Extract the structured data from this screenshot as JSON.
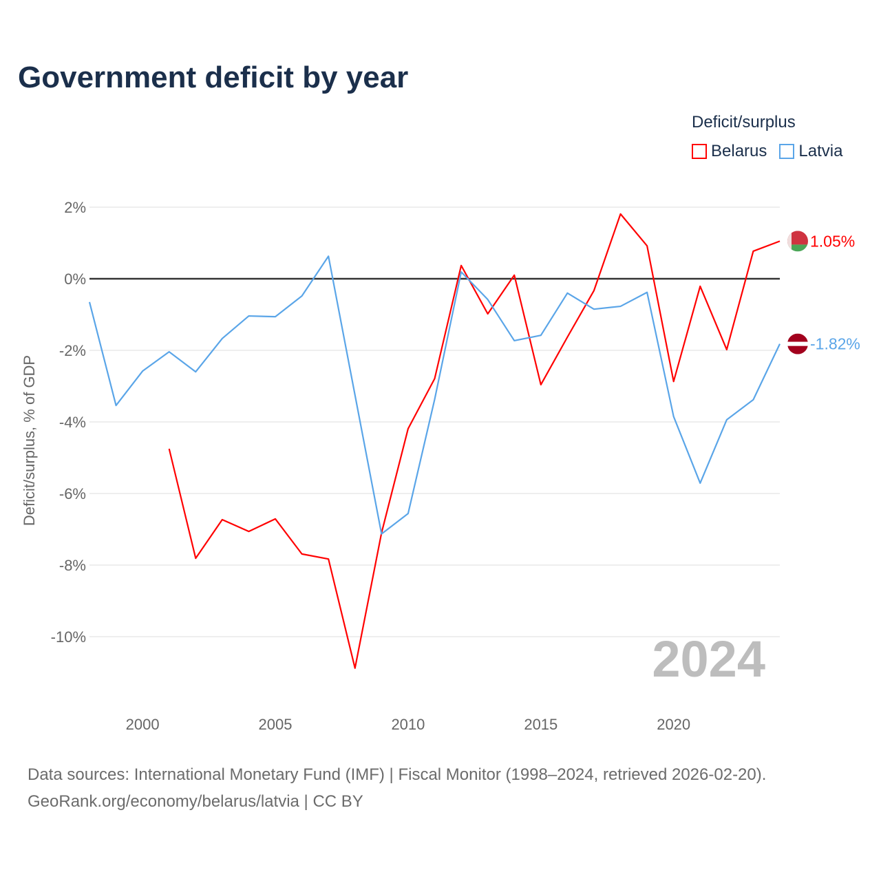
{
  "title": "Government deficit by year",
  "legend": {
    "title": "Deficit/surplus",
    "items": [
      {
        "name": "Belarus",
        "color": "#ff0000"
      },
      {
        "name": "Latvia",
        "color": "#5aa5e8"
      }
    ]
  },
  "footer": {
    "line1": "Data sources: International Monetary Fund (IMF) | Fiscal Monitor (1998–2024, retrieved 2026-02-20).",
    "line2": "GeoRank.org/economy/belarus/latvia | CC BY"
  },
  "chart_data": {
    "type": "line",
    "title": "Government deficit by year",
    "xlabel": "",
    "ylabel": "Deficit/surplus, % of GDP",
    "xlim": [
      1998,
      2024
    ],
    "ylim": [
      -11.5,
      2.2
    ],
    "yticks": [
      2,
      0,
      -2,
      -4,
      -6,
      -8,
      -10
    ],
    "ytick_labels": [
      "2%",
      "0%",
      "-2%",
      "-4%",
      "-6%",
      "-8%",
      "-10%"
    ],
    "xticks": [
      2000,
      2005,
      2010,
      2015,
      2020
    ],
    "xtick_labels": [
      "2000",
      "2005",
      "2010",
      "2015",
      "2020"
    ],
    "year_watermark": "2024",
    "series": [
      {
        "name": "Belarus",
        "color": "#ff0000",
        "end_label": "1.05%",
        "x": [
          2001,
          2002,
          2003,
          2004,
          2005,
          2006,
          2007,
          2008,
          2009,
          2010,
          2011,
          2012,
          2013,
          2014,
          2015,
          2016,
          2017,
          2018,
          2019,
          2020,
          2021,
          2022,
          2023,
          2024
        ],
        "values": [
          -4.75,
          -7.81,
          -6.73,
          -7.06,
          -6.71,
          -7.69,
          -7.83,
          -10.88,
          -7.1,
          -4.19,
          -2.79,
          0.37,
          -0.98,
          0.1,
          -2.96,
          -1.63,
          -0.33,
          1.81,
          0.92,
          -2.87,
          -0.21,
          -1.98,
          0.77,
          1.05
        ]
      },
      {
        "name": "Latvia",
        "color": "#5aa5e8",
        "end_label": "-1.82%",
        "x": [
          1998,
          1999,
          2000,
          2001,
          2002,
          2003,
          2004,
          2005,
          2006,
          2007,
          2008,
          2009,
          2010,
          2011,
          2012,
          2013,
          2014,
          2015,
          2016,
          2017,
          2018,
          2019,
          2020,
          2021,
          2022,
          2023,
          2024
        ],
        "values": [
          -0.65,
          -3.54,
          -2.58,
          -2.04,
          -2.6,
          -1.67,
          -1.04,
          -1.06,
          -0.48,
          0.63,
          -3.25,
          -7.13,
          -6.56,
          -3.37,
          0.19,
          -0.58,
          -1.73,
          -1.58,
          -0.4,
          -0.85,
          -0.77,
          -0.38,
          -3.85,
          -5.71,
          -3.94,
          -3.38,
          -1.82
        ]
      }
    ]
  }
}
